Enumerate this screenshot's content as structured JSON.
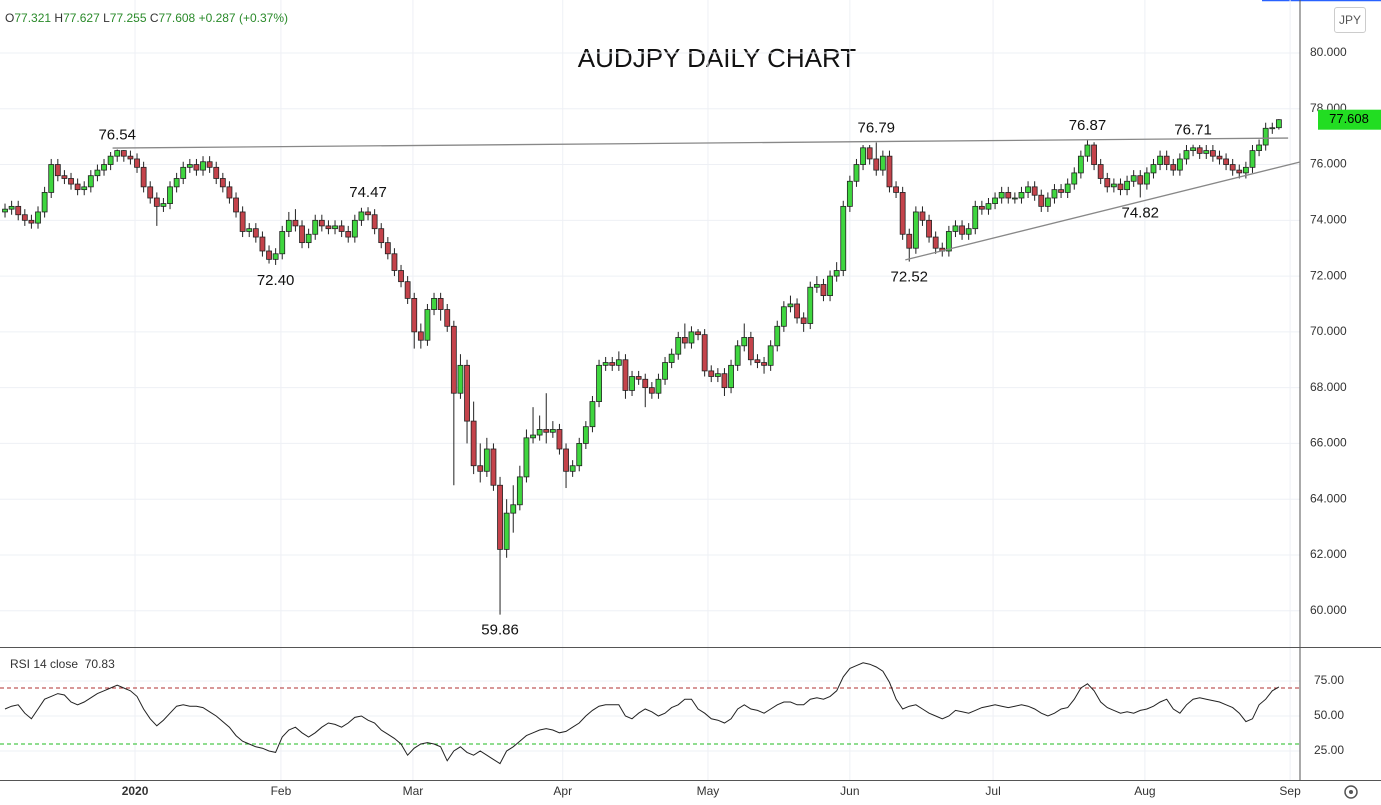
{
  "chart_data": {
    "type": "candlestick",
    "title": "AUDJPY DAILY CHART",
    "currency": "JPY",
    "header": {
      "o": "O",
      "h": "H",
      "l": "L",
      "c": "C",
      "change": "+0.287",
      "change_pct": "(+0.37%)"
    },
    "candles": [
      [
        74.3,
        74.6,
        74.1,
        74.4
      ],
      [
        74.4,
        74.7,
        74.2,
        74.5
      ],
      [
        74.5,
        74.7,
        74.0,
        74.2
      ],
      [
        74.2,
        74.4,
        73.8,
        74.0
      ],
      [
        74.0,
        74.2,
        73.7,
        73.9
      ],
      [
        73.9,
        74.5,
        73.7,
        74.3
      ],
      [
        74.3,
        75.2,
        74.1,
        75.0
      ],
      [
        75.0,
        76.2,
        74.8,
        76.0
      ],
      [
        76.0,
        76.2,
        75.4,
        75.6
      ],
      [
        75.6,
        75.8,
        75.3,
        75.5
      ],
      [
        75.5,
        75.7,
        75.1,
        75.3
      ],
      [
        75.3,
        75.5,
        74.9,
        75.1
      ],
      [
        75.1,
        75.4,
        74.9,
        75.2
      ],
      [
        75.2,
        75.8,
        75.0,
        75.6
      ],
      [
        75.6,
        76.0,
        75.4,
        75.8
      ],
      [
        75.8,
        76.2,
        75.6,
        76.0
      ],
      [
        76.0,
        76.45,
        75.8,
        76.3
      ],
      [
        76.3,
        76.54,
        76.1,
        76.5
      ],
      [
        76.5,
        76.52,
        76.1,
        76.3
      ],
      [
        76.3,
        76.5,
        76.0,
        76.2
      ],
      [
        76.2,
        76.4,
        75.7,
        75.9
      ],
      [
        75.9,
        76.1,
        75.0,
        75.2
      ],
      [
        75.2,
        75.4,
        74.6,
        74.8
      ],
      [
        74.8,
        75.0,
        73.8,
        74.5
      ],
      [
        74.5,
        74.8,
        74.3,
        74.6
      ],
      [
        74.6,
        75.4,
        74.4,
        75.2
      ],
      [
        75.2,
        75.7,
        75.0,
        75.5
      ],
      [
        75.5,
        76.1,
        75.3,
        75.9
      ],
      [
        75.9,
        76.2,
        75.7,
        76.0
      ],
      [
        76.0,
        76.2,
        75.6,
        75.8
      ],
      [
        75.8,
        76.3,
        75.6,
        76.1
      ],
      [
        76.1,
        76.3,
        75.7,
        75.9
      ],
      [
        75.9,
        76.1,
        75.3,
        75.5
      ],
      [
        75.5,
        75.7,
        75.0,
        75.2
      ],
      [
        75.2,
        75.4,
        74.6,
        74.8
      ],
      [
        74.8,
        75.0,
        74.1,
        74.3
      ],
      [
        74.3,
        74.5,
        73.4,
        73.6
      ],
      [
        73.6,
        73.9,
        73.4,
        73.7
      ],
      [
        73.7,
        73.9,
        73.2,
        73.4
      ],
      [
        73.4,
        73.6,
        72.7,
        72.9
      ],
      [
        72.9,
        73.1,
        72.45,
        72.6
      ],
      [
        72.6,
        73.0,
        72.4,
        72.8
      ],
      [
        72.8,
        73.8,
        72.6,
        73.6
      ],
      [
        73.6,
        74.3,
        73.4,
        74.0
      ],
      [
        74.0,
        74.4,
        73.6,
        73.8
      ],
      [
        73.8,
        74.0,
        73.0,
        73.2
      ],
      [
        73.2,
        73.7,
        73.0,
        73.5
      ],
      [
        73.5,
        74.2,
        73.3,
        74.0
      ],
      [
        74.0,
        74.2,
        73.6,
        73.8
      ],
      [
        73.8,
        74.0,
        73.5,
        73.7
      ],
      [
        73.7,
        74.0,
        73.5,
        73.8
      ],
      [
        73.8,
        74.0,
        73.4,
        73.6
      ],
      [
        73.6,
        73.8,
        73.2,
        73.4
      ],
      [
        73.4,
        74.2,
        73.2,
        74.0
      ],
      [
        74.0,
        74.45,
        73.8,
        74.3
      ],
      [
        74.3,
        74.47,
        74.0,
        74.2
      ],
      [
        74.2,
        74.4,
        73.5,
        73.7
      ],
      [
        73.7,
        73.9,
        73.0,
        73.2
      ],
      [
        73.2,
        73.4,
        72.6,
        72.8
      ],
      [
        72.8,
        73.0,
        72.0,
        72.2
      ],
      [
        72.2,
        72.4,
        71.6,
        71.8
      ],
      [
        71.8,
        72.0,
        71.0,
        71.2
      ],
      [
        71.2,
        71.4,
        69.4,
        70.0
      ],
      [
        70.0,
        70.3,
        69.4,
        69.7
      ],
      [
        69.7,
        71.0,
        69.5,
        70.8
      ],
      [
        70.8,
        71.4,
        70.6,
        71.2
      ],
      [
        71.2,
        71.4,
        70.4,
        70.8
      ],
      [
        70.8,
        71.0,
        70.0,
        70.2
      ],
      [
        70.2,
        70.4,
        64.5,
        67.8
      ],
      [
        67.8,
        69.2,
        67.6,
        68.8
      ],
      [
        68.8,
        69.0,
        66.0,
        66.8
      ],
      [
        66.8,
        67.5,
        64.9,
        65.2
      ],
      [
        65.2,
        66.0,
        64.6,
        65.0
      ],
      [
        65.0,
        66.2,
        64.8,
        65.8
      ],
      [
        65.8,
        66.0,
        64.3,
        64.5
      ],
      [
        64.5,
        64.8,
        59.86,
        62.2
      ],
      [
        62.2,
        64.0,
        61.9,
        63.5
      ],
      [
        63.5,
        64.5,
        62.8,
        63.8
      ],
      [
        63.8,
        65.2,
        63.6,
        64.8
      ],
      [
        64.8,
        66.5,
        64.6,
        66.2
      ],
      [
        66.2,
        67.3,
        66.0,
        66.3
      ],
      [
        66.3,
        67.0,
        66.1,
        66.5
      ],
      [
        66.5,
        67.8,
        66.0,
        66.4
      ],
      [
        66.4,
        66.8,
        66.2,
        66.5
      ],
      [
        66.5,
        66.7,
        65.6,
        65.8
      ],
      [
        65.8,
        66.0,
        64.4,
        65.0
      ],
      [
        65.0,
        65.4,
        64.8,
        65.2
      ],
      [
        65.2,
        66.2,
        65.0,
        66.0
      ],
      [
        66.0,
        66.8,
        65.8,
        66.6
      ],
      [
        66.6,
        67.7,
        66.4,
        67.5
      ],
      [
        67.5,
        69.0,
        67.3,
        68.8
      ],
      [
        68.8,
        69.1,
        68.6,
        68.9
      ],
      [
        68.9,
        69.1,
        68.6,
        68.8
      ],
      [
        68.8,
        69.3,
        68.6,
        69.0
      ],
      [
        69.0,
        69.2,
        67.6,
        67.9
      ],
      [
        67.9,
        68.6,
        67.7,
        68.4
      ],
      [
        68.4,
        68.6,
        68.1,
        68.3
      ],
      [
        68.3,
        68.5,
        67.3,
        68.0
      ],
      [
        68.0,
        68.2,
        67.6,
        67.8
      ],
      [
        67.8,
        68.5,
        67.6,
        68.3
      ],
      [
        68.3,
        69.1,
        68.1,
        68.9
      ],
      [
        68.9,
        69.4,
        68.7,
        69.2
      ],
      [
        69.2,
        70.0,
        69.0,
        69.8
      ],
      [
        69.8,
        70.3,
        69.4,
        69.6
      ],
      [
        69.6,
        70.2,
        69.4,
        70.0
      ],
      [
        70.0,
        70.1,
        69.7,
        69.9
      ],
      [
        69.9,
        70.1,
        68.4,
        68.6
      ],
      [
        68.6,
        68.8,
        68.2,
        68.4
      ],
      [
        68.4,
        68.7,
        68.2,
        68.5
      ],
      [
        68.5,
        68.7,
        67.7,
        68.0
      ],
      [
        68.0,
        69.0,
        67.8,
        68.8
      ],
      [
        68.8,
        69.7,
        68.6,
        69.5
      ],
      [
        69.5,
        70.3,
        69.3,
        69.8
      ],
      [
        69.8,
        70.0,
        68.8,
        69.0
      ],
      [
        69.0,
        69.2,
        68.7,
        68.9
      ],
      [
        68.9,
        69.1,
        68.5,
        68.8
      ],
      [
        68.8,
        69.7,
        68.6,
        69.5
      ],
      [
        69.5,
        70.4,
        69.3,
        70.2
      ],
      [
        70.2,
        71.1,
        70.0,
        70.9
      ],
      [
        70.9,
        71.3,
        70.7,
        71.0
      ],
      [
        71.0,
        71.2,
        70.3,
        70.5
      ],
      [
        70.5,
        70.7,
        70.0,
        70.3
      ],
      [
        70.3,
        71.8,
        70.1,
        71.6
      ],
      [
        71.6,
        72.0,
        71.4,
        71.7
      ],
      [
        71.7,
        71.9,
        71.1,
        71.3
      ],
      [
        71.3,
        72.2,
        71.1,
        72.0
      ],
      [
        72.0,
        72.5,
        71.8,
        72.2
      ],
      [
        72.2,
        74.7,
        72.0,
        74.5
      ],
      [
        74.5,
        75.6,
        74.3,
        75.4
      ],
      [
        75.4,
        76.2,
        75.2,
        76.0
      ],
      [
        76.0,
        76.7,
        75.8,
        76.6
      ],
      [
        76.6,
        76.7,
        76.0,
        76.2
      ],
      [
        76.2,
        76.79,
        75.6,
        75.8
      ],
      [
        75.8,
        76.5,
        75.6,
        76.3
      ],
      [
        76.3,
        76.5,
        75.0,
        75.2
      ],
      [
        75.2,
        75.4,
        74.8,
        75.0
      ],
      [
        75.0,
        75.2,
        73.3,
        73.5
      ],
      [
        73.5,
        73.7,
        72.52,
        73.0
      ],
      [
        73.0,
        74.5,
        72.8,
        74.3
      ],
      [
        74.3,
        74.5,
        73.8,
        74.0
      ],
      [
        74.0,
        74.2,
        73.2,
        73.4
      ],
      [
        73.4,
        73.6,
        72.8,
        73.0
      ],
      [
        73.0,
        73.2,
        72.7,
        72.9
      ],
      [
        72.9,
        73.8,
        72.7,
        73.6
      ],
      [
        73.6,
        74.0,
        73.4,
        73.8
      ],
      [
        73.8,
        74.0,
        73.3,
        73.5
      ],
      [
        73.5,
        73.9,
        73.3,
        73.7
      ],
      [
        73.7,
        74.7,
        73.5,
        74.5
      ],
      [
        74.5,
        74.7,
        74.2,
        74.4
      ],
      [
        74.4,
        74.8,
        74.2,
        74.6
      ],
      [
        74.6,
        75.0,
        74.4,
        74.8
      ],
      [
        74.8,
        75.2,
        74.6,
        75.0
      ],
      [
        75.0,
        75.2,
        74.6,
        74.8
      ],
      [
        74.8,
        75.0,
        74.6,
        74.8
      ],
      [
        74.8,
        75.2,
        74.6,
        75.0
      ],
      [
        75.0,
        75.4,
        74.8,
        75.2
      ],
      [
        75.2,
        75.4,
        74.7,
        74.9
      ],
      [
        74.9,
        75.1,
        74.3,
        74.5
      ],
      [
        74.5,
        75.0,
        74.3,
        74.8
      ],
      [
        74.8,
        75.3,
        74.6,
        75.1
      ],
      [
        75.1,
        75.3,
        74.8,
        75.0
      ],
      [
        75.0,
        75.5,
        74.8,
        75.3
      ],
      [
        75.3,
        75.9,
        75.1,
        75.7
      ],
      [
        75.7,
        76.5,
        75.5,
        76.3
      ],
      [
        76.3,
        76.87,
        76.1,
        76.7
      ],
      [
        76.7,
        76.8,
        75.8,
        76.0
      ],
      [
        76.0,
        76.2,
        75.3,
        75.5
      ],
      [
        75.5,
        75.7,
        75.0,
        75.2
      ],
      [
        75.2,
        75.5,
        75.0,
        75.3
      ],
      [
        75.3,
        75.5,
        74.9,
        75.1
      ],
      [
        75.1,
        75.6,
        74.9,
        75.4
      ],
      [
        75.4,
        75.8,
        75.2,
        75.6
      ],
      [
        75.6,
        75.8,
        74.82,
        75.3
      ],
      [
        75.3,
        75.9,
        75.1,
        75.7
      ],
      [
        75.7,
        76.2,
        75.5,
        76.0
      ],
      [
        76.0,
        76.5,
        75.8,
        76.3
      ],
      [
        76.3,
        76.5,
        75.8,
        76.0
      ],
      [
        76.0,
        76.2,
        75.6,
        75.8
      ],
      [
        75.8,
        76.4,
        75.6,
        76.2
      ],
      [
        76.2,
        76.7,
        76.0,
        76.5
      ],
      [
        76.5,
        76.71,
        76.3,
        76.6
      ],
      [
        76.6,
        76.7,
        76.2,
        76.4
      ],
      [
        76.4,
        76.7,
        76.2,
        76.5
      ],
      [
        76.5,
        76.7,
        76.1,
        76.3
      ],
      [
        76.3,
        76.5,
        76.0,
        76.2
      ],
      [
        76.2,
        76.4,
        75.8,
        76.0
      ],
      [
        76.0,
        76.2,
        75.6,
        75.8
      ],
      [
        75.8,
        76.0,
        75.5,
        75.7
      ],
      [
        75.7,
        76.1,
        75.5,
        75.9
      ],
      [
        75.9,
        76.7,
        75.7,
        76.5
      ],
      [
        76.5,
        76.9,
        76.3,
        76.7
      ],
      [
        76.7,
        77.5,
        76.5,
        77.3
      ],
      [
        77.3,
        77.5,
        77.1,
        77.32
      ],
      [
        77.321,
        77.627,
        77.255,
        77.608
      ]
    ],
    "xlim": [
      -0.76,
      196.2
    ],
    "xticks": [
      {
        "value": 19.7,
        "label": "2020"
      },
      {
        "value": 41.8,
        "label": "Feb"
      },
      {
        "value": 61.8,
        "label": "Mar"
      },
      {
        "value": 84.5,
        "label": "Apr"
      },
      {
        "value": 106.5,
        "label": "May"
      },
      {
        "value": 128,
        "label": "Jun"
      },
      {
        "value": 149.7,
        "label": "Jul"
      },
      {
        "value": 172.7,
        "label": "Aug"
      },
      {
        "value": 194.7,
        "label": "Sep"
      }
    ],
    "ylim": [
      58.7,
      81.9
    ],
    "yticks": [
      {
        "value": 60,
        "label": "60.000"
      },
      {
        "value": 62,
        "label": "62.000"
      },
      {
        "value": 64,
        "label": "64.000"
      },
      {
        "value": 66,
        "label": "66.000"
      },
      {
        "value": 68,
        "label": "68.000"
      },
      {
        "value": 70,
        "label": "70.000"
      },
      {
        "value": 72,
        "label": "72.000"
      },
      {
        "value": 74,
        "label": "74.000"
      },
      {
        "value": 76,
        "label": "76.000"
      },
      {
        "value": 78,
        "label": "78.000"
      },
      {
        "value": 80,
        "label": "80.000"
      }
    ],
    "grid": true,
    "up_color": "#3fd63f",
    "down_color": "#c4434b",
    "badge_color": "#22dd22",
    "annotations": [
      {
        "label": "76.54",
        "x": 17,
        "y": 76.54
      },
      {
        "label": "72.40",
        "x": 41,
        "y": 72.4
      },
      {
        "label": "74.47",
        "x": 55,
        "y": 74.47
      },
      {
        "label": "59.86",
        "x": 75,
        "y": 59.86
      },
      {
        "label": "76.79",
        "x": 132,
        "y": 76.79
      },
      {
        "label": "72.52",
        "x": 137,
        "y": 72.52
      },
      {
        "label": "76.87",
        "x": 164,
        "y": 76.87
      },
      {
        "label": "74.82",
        "x": 172,
        "y": 74.82
      },
      {
        "label": "76.71",
        "x": 180,
        "y": 76.71
      }
    ],
    "trendlines": [
      {
        "from": [
          16.3,
          76.59
        ],
        "to": [
          194.4,
          76.95
        ],
        "color": "#888888"
      },
      {
        "from": [
          136.4,
          72.58
        ],
        "to": [
          196.2,
          76.09
        ],
        "color": "#888888"
      }
    ],
    "rsi": {
      "label": "RSI 14 close",
      "color": "#222222",
      "ylim": [
        4.3,
        98.6
      ],
      "yticks": [
        {
          "value": 25,
          "label": "25.00"
        },
        {
          "value": 50,
          "label": "50.00"
        },
        {
          "value": 75,
          "label": "75.00"
        }
      ],
      "levels": [
        {
          "value": 70,
          "color": "#b03030"
        },
        {
          "value": 30,
          "color": "#22bb22"
        }
      ],
      "values": [
        55,
        57,
        58,
        52,
        48,
        55,
        62,
        64,
        66,
        65,
        60,
        58,
        60,
        63,
        66,
        68,
        70,
        72,
        70,
        68,
        64,
        55,
        48,
        43,
        47,
        52,
        57,
        58,
        57,
        57,
        56,
        53,
        50,
        46,
        42,
        36,
        32,
        30,
        28,
        27,
        25,
        24,
        35,
        40,
        42,
        38,
        35,
        38,
        42,
        45,
        44,
        42,
        45,
        49,
        50,
        47,
        45,
        40,
        37,
        34,
        30,
        22,
        27,
        30,
        31,
        30,
        28,
        18,
        25,
        28,
        24,
        22,
        25,
        22,
        19,
        16,
        25,
        28,
        32,
        36,
        38,
        40,
        41,
        40,
        38,
        39,
        42,
        45,
        50,
        54,
        57,
        58,
        58,
        58,
        50,
        48,
        52,
        55,
        53,
        50,
        52,
        56,
        58,
        62,
        62,
        55,
        52,
        48,
        47,
        45,
        48,
        55,
        58,
        55,
        54,
        52,
        55,
        58,
        60,
        60,
        58,
        58,
        62,
        63,
        62,
        64,
        68,
        78,
        84,
        86,
        88,
        87,
        85,
        82,
        74,
        62,
        55,
        57,
        58,
        55,
        52,
        50,
        48,
        50,
        54,
        53,
        52,
        54,
        56,
        57,
        58,
        57,
        56,
        57,
        58,
        57,
        55,
        52,
        50,
        52,
        55,
        56,
        62,
        70,
        73,
        68,
        60,
        56,
        54,
        52,
        53,
        52,
        54,
        55,
        57,
        60,
        62,
        55,
        52,
        58,
        62,
        63,
        62,
        61,
        60,
        58,
        56,
        52,
        46,
        48,
        58,
        62,
        68,
        70.83
      ]
    }
  }
}
